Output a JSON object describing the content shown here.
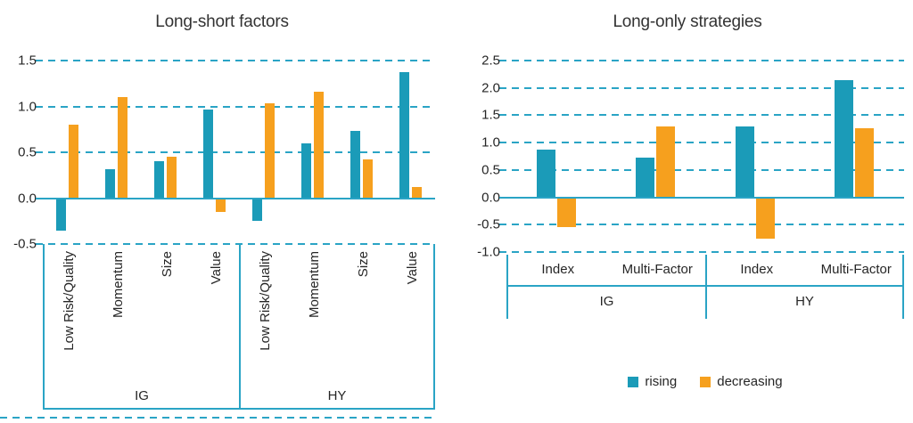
{
  "colors": {
    "rising": "#1b9bb8",
    "decreasing": "#f6a01e",
    "line": "#2aa4c5",
    "text": "#262626",
    "title": "#333333"
  },
  "legend": {
    "items": [
      {
        "label": "rising",
        "color_key": "rising"
      },
      {
        "label": "decreasing",
        "color_key": "decreasing"
      }
    ]
  },
  "chart_data": [
    {
      "type": "bar",
      "title": "Long-short factors",
      "ylim": [
        -0.5,
        1.5
      ],
      "yticks": [
        1.5,
        1.0,
        0.5,
        0.0,
        -0.5
      ],
      "grid": "dashed",
      "legend_position": "none",
      "groups": [
        {
          "label": "IG",
          "categories": [
            "Low Risk/Quality",
            "Momentum",
            "Size",
            "Value"
          ]
        },
        {
          "label": "HY",
          "categories": [
            "Low Risk/Quality",
            "Momentum",
            "Size",
            "Value"
          ]
        }
      ],
      "series": [
        {
          "name": "rising",
          "values": [
            -0.35,
            0.32,
            0.4,
            0.97,
            -0.25,
            0.6,
            0.73,
            1.37
          ]
        },
        {
          "name": "decreasing",
          "values": [
            0.8,
            1.1,
            0.45,
            -0.15,
            1.03,
            1.16,
            0.42,
            0.12
          ]
        }
      ]
    },
    {
      "type": "bar",
      "title": "Long-only strategies",
      "ylim": [
        -1.0,
        2.5
      ],
      "yticks": [
        2.5,
        2.0,
        1.5,
        1.0,
        0.5,
        0.0,
        -0.5,
        -1.0
      ],
      "grid": "dashed",
      "legend_position": "bottom",
      "groups": [
        {
          "label": "IG",
          "categories": [
            "Index",
            "Multi-Factor"
          ]
        },
        {
          "label": "HY",
          "categories": [
            "Index",
            "Multi-Factor"
          ]
        }
      ],
      "series": [
        {
          "name": "rising",
          "values": [
            0.87,
            0.72,
            1.3,
            2.15
          ]
        },
        {
          "name": "decreasing",
          "values": [
            -0.55,
            1.3,
            -0.75,
            1.27
          ]
        }
      ]
    }
  ]
}
